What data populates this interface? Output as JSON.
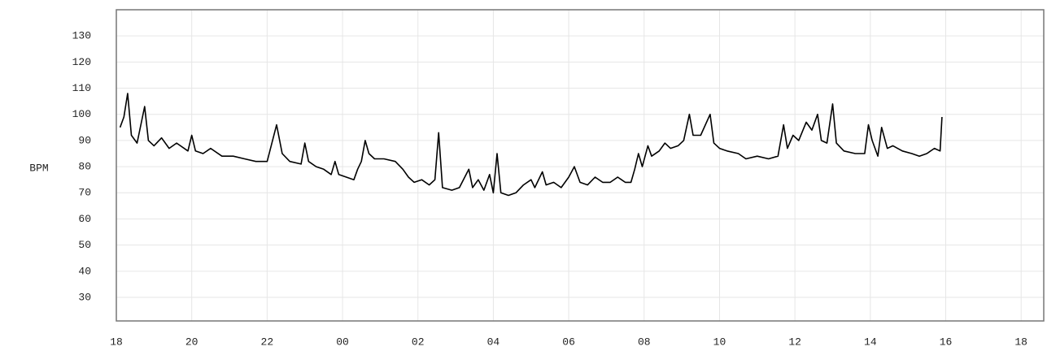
{
  "chart_data": {
    "type": "line",
    "y_label": "BPM",
    "color": "#000000",
    "grid": true,
    "x": [
      18.1,
      18.2,
      18.3,
      18.4,
      18.55,
      18.75,
      18.85,
      19.0,
      19.2,
      19.4,
      19.6,
      19.9,
      20.0,
      20.1,
      20.3,
      20.5,
      20.8,
      21.1,
      21.4,
      21.7,
      22.0,
      22.25,
      22.4,
      22.6,
      22.9,
      23.0,
      23.1,
      23.3,
      23.5,
      23.7,
      23.8,
      23.9,
      24.1,
      24.3,
      24.4,
      24.5,
      24.6,
      24.7,
      24.85,
      25.1,
      25.4,
      25.6,
      25.75,
      25.9,
      26.1,
      26.3,
      26.45,
      26.55,
      26.65,
      26.9,
      27.1,
      27.35,
      27.45,
      27.6,
      27.75,
      27.9,
      28.0,
      28.1,
      28.2,
      28.4,
      28.6,
      28.8,
      29.0,
      29.1,
      29.3,
      29.4,
      29.6,
      29.8,
      30.0,
      30.15,
      30.3,
      30.5,
      30.7,
      30.9,
      31.1,
      31.3,
      31.5,
      31.65,
      31.75,
      31.85,
      31.95,
      32.1,
      32.2,
      32.4,
      32.55,
      32.7,
      32.9,
      33.05,
      33.2,
      33.3,
      33.5,
      33.75,
      33.85,
      34.0,
      34.2,
      34.5,
      34.7,
      35.0,
      35.3,
      35.55,
      35.7,
      35.8,
      35.95,
      36.1,
      36.3,
      36.45,
      36.6,
      36.7,
      36.85,
      37.0,
      37.1,
      37.3,
      37.6,
      37.85,
      37.95,
      38.05,
      38.2,
      38.3,
      38.45,
      38.6,
      38.85,
      39.1,
      39.3,
      39.5,
      39.7,
      39.85,
      39.9
    ],
    "values": [
      95,
      99,
      108,
      92,
      89,
      103,
      90,
      88,
      91,
      87,
      89,
      86,
      92,
      86,
      85,
      87,
      84,
      84,
      83,
      82,
      82,
      96,
      85,
      82,
      81,
      89,
      82,
      80,
      79,
      77,
      82,
      77,
      76,
      75,
      79,
      82,
      90,
      85,
      83,
      83,
      82,
      79,
      76,
      74,
      75,
      73,
      75,
      93,
      72,
      71,
      72,
      79,
      72,
      75,
      71,
      77,
      70,
      85,
      70,
      69,
      70,
      73,
      75,
      72,
      78,
      73,
      74,
      72,
      76,
      80,
      74,
      73,
      76,
      74,
      74,
      76,
      74,
      74,
      79,
      85,
      80,
      88,
      84,
      86,
      89,
      87,
      88,
      90,
      100,
      92,
      92,
      100,
      89,
      87,
      86,
      85,
      83,
      84,
      83,
      84,
      96,
      87,
      92,
      90,
      97,
      94,
      100,
      90,
      89,
      104,
      89,
      86,
      85,
      85,
      96,
      90,
      84,
      95,
      87,
      88,
      86,
      85,
      84,
      85,
      87,
      86,
      99
    ],
    "xlim": [
      18,
      42.6
    ],
    "xticks": [
      18,
      20,
      22,
      {
        "value": 24,
        "label": "00"
      },
      {
        "value": 26,
        "label": "02"
      },
      {
        "value": 28,
        "label": "04"
      },
      {
        "value": 30,
        "label": "06"
      },
      {
        "value": 32,
        "label": "08"
      },
      {
        "value": 34,
        "label": "10"
      },
      {
        "value": 36,
        "label": "12"
      },
      {
        "value": 38,
        "label": "14"
      },
      {
        "value": 40,
        "label": "16"
      },
      {
        "value": 42,
        "label": "18"
      }
    ],
    "ylim": [
      21,
      140
    ],
    "yticks": [
      30,
      40,
      50,
      60,
      70,
      80,
      90,
      100,
      110,
      120,
      130
    ]
  }
}
